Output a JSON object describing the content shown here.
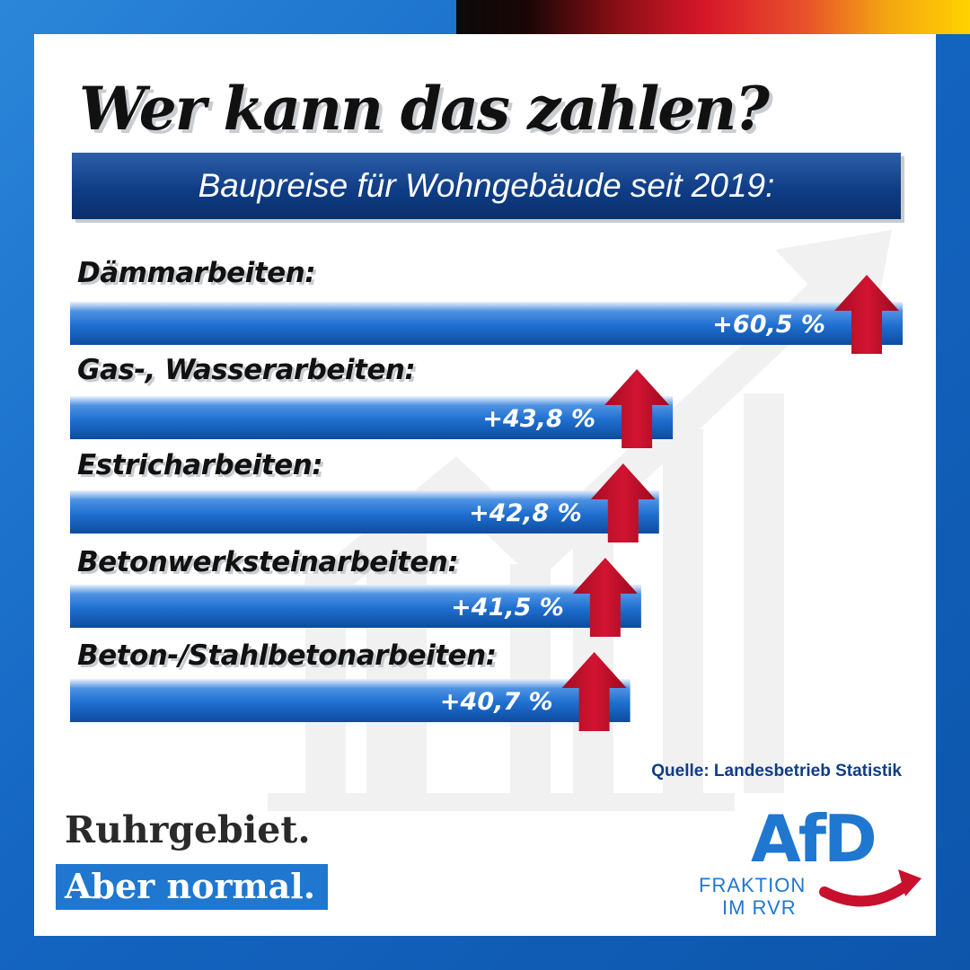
{
  "headline": "Wer kann das zahlen?",
  "subtitle": "Baupreise für Wohngebäude seit 2019:",
  "chart_data": {
    "type": "bar",
    "orientation": "horizontal",
    "categories": [
      "Dämmarbeiten:",
      "Gas-, Wasserarbeiten:",
      "Estricharbeiten:",
      "Betonwerksteinarbeiten:",
      "Beton-/Stahlbetonarbeiten:"
    ],
    "values": [
      60.5,
      43.8,
      42.8,
      41.5,
      40.7
    ],
    "value_labels": [
      "+60,5 %",
      "+43,8 %",
      "+42,8 %",
      "+41,5 %",
      "+40,7 %"
    ],
    "unit": "%",
    "title": "Baupreise für Wohngebäude seit 2019:",
    "xlabel": "",
    "ylabel": "",
    "grid": false,
    "legend": "none"
  },
  "source": "Quelle: Landesbetrieb Statistik",
  "slogan": {
    "line1": "Ruhrgebiet.",
    "line2": "Aber normal."
  },
  "logo": {
    "name": "AfD",
    "line1": "FRAKTION",
    "line2": "IM RVR"
  },
  "colors": {
    "frame_blue": "#1466c2",
    "banner_navy": "#0f3d86",
    "bar_blue": "#1f6fd0",
    "arrow_red": "#c8102e",
    "logo_blue": "#1f77d0"
  },
  "icons": {
    "increase_marker": "red-up-arrow-icon",
    "background": "rising-trend-arrow-icon"
  }
}
